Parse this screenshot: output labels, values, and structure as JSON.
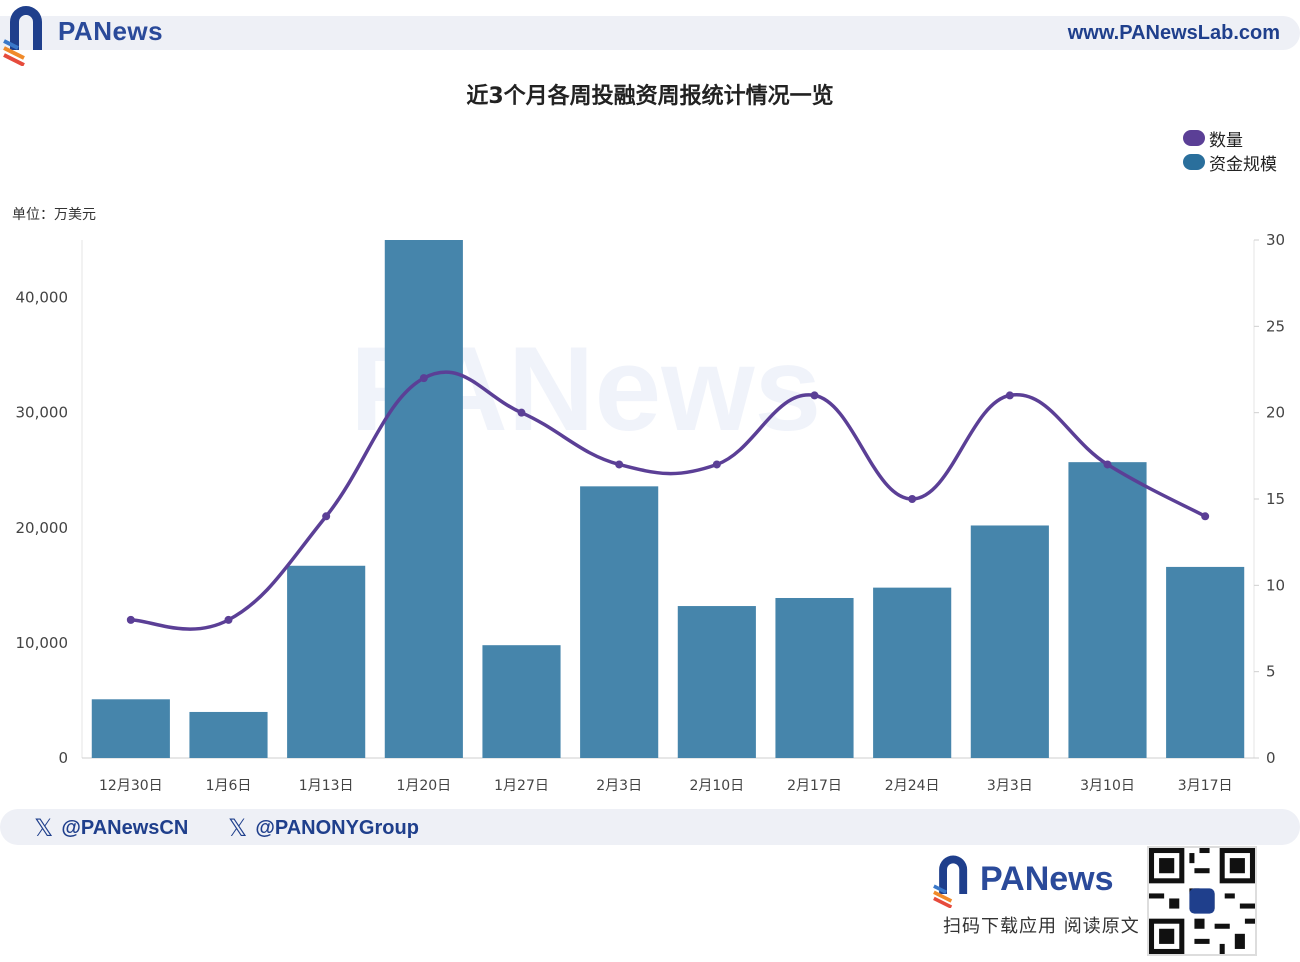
{
  "header": {
    "brand": "PANews",
    "url": "www.PANewsLab.com"
  },
  "chart_title": "近3个月各周投融资周报统计情况一览",
  "unit_label": "单位：万美元",
  "legend": [
    {
      "name": "数量",
      "color": "#5b3f96"
    },
    {
      "name": "资金规模",
      "color": "#4685ab"
    }
  ],
  "watermark": "PANews",
  "chart_data": {
    "type": "bar",
    "title": "近3个月各周投融资周报统计情况一览",
    "categories": [
      "12月30日",
      "1月6日",
      "1月13日",
      "1月20日",
      "1月27日",
      "2月3日",
      "2月10日",
      "2月17日",
      "2月24日",
      "3月3日",
      "3月10日",
      "3月17日"
    ],
    "series": [
      {
        "name": "资金规模",
        "type": "bar",
        "axis": "left",
        "color": "#4685ab",
        "values": [
          5100,
          4000,
          16700,
          45000,
          9800,
          23600,
          13200,
          13900,
          14800,
          20200,
          25700,
          16600
        ]
      },
      {
        "name": "数量",
        "type": "line",
        "axis": "right",
        "color": "#5b3f96",
        "values": [
          8,
          8,
          14,
          22,
          20,
          17,
          17,
          21,
          15,
          21,
          17,
          14
        ]
      }
    ],
    "y_left": {
      "ylim": [
        0,
        45000
      ],
      "ticks": [
        "0",
        "10,000",
        "20,000",
        "30,000",
        "40,000"
      ],
      "tick_values": [
        0,
        10000,
        20000,
        30000,
        40000
      ]
    },
    "y_right": {
      "ylim": [
        0,
        30
      ],
      "ticks": [
        "0",
        "5",
        "10",
        "15",
        "20",
        "25",
        "30"
      ],
      "tick_values": [
        0,
        5,
        10,
        15,
        20,
        25,
        30
      ]
    },
    "ylabel": "单位：万美元",
    "grid": false,
    "legend_position": "top-right"
  },
  "footer": {
    "social": [
      "@PANewsCN",
      "@PANONYGroup"
    ],
    "brand": "PANews",
    "cta": "扫码下载应用  阅读原文"
  }
}
